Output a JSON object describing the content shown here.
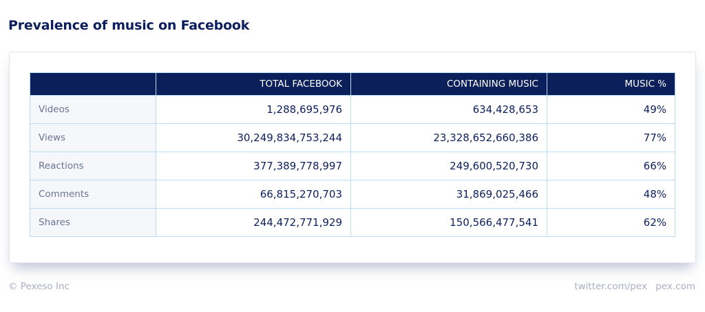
{
  "title": "Prevalence of music on Facebook",
  "table": {
    "headers": [
      "",
      "TOTAL FACEBOOK",
      "CONTAINING MUSIC",
      "MUSIC %"
    ],
    "rows": [
      {
        "label": "Videos",
        "total": "1,288,695,976",
        "music": "634,428,653",
        "pct": "49%"
      },
      {
        "label": "Views",
        "total": "30,249,834,753,244",
        "music": "23,328,652,660,386",
        "pct": "77%"
      },
      {
        "label": "Reactions",
        "total": "377,389,778,997",
        "music": "249,600,520,730",
        "pct": "66%"
      },
      {
        "label": "Comments",
        "total": "66,815,270,703",
        "music": "31,869,025,466",
        "pct": "48%"
      },
      {
        "label": "Shares",
        "total": "244,472,771,929",
        "music": "150,566,477,541",
        "pct": "62%"
      }
    ]
  },
  "footer": {
    "copyright": "© Pexeso Inc",
    "twitter": "twitter.com/pex",
    "site": "pex.com"
  },
  "colors": {
    "header_bg": "#0b1f5b",
    "border": "#b9dcf5",
    "title": "#0c1f5c"
  }
}
